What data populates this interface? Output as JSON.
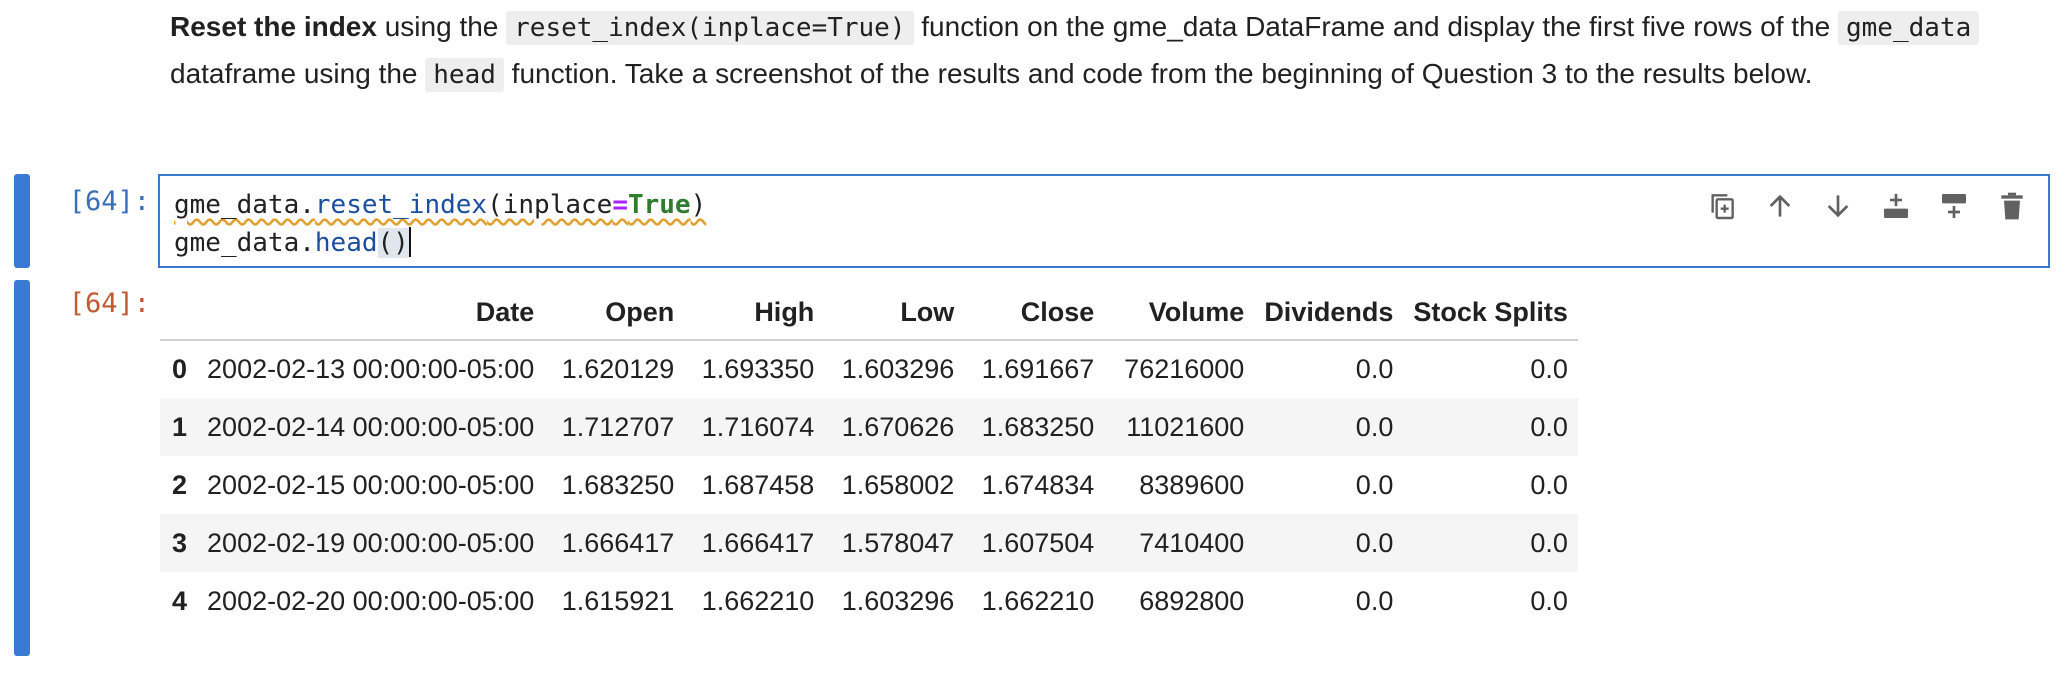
{
  "markdown": {
    "bold": "Reset the index",
    "t1": " using the ",
    "code1": "reset_index(inplace=True)",
    "t2": " function on the gme_data DataFrame and display the first five rows of the ",
    "code2": "gme_data",
    "t3": " dataframe using the ",
    "code3": "head",
    "t4": " function. Take a screenshot of the results and code from the beginning of Question 3 to the results below."
  },
  "cell": {
    "input_prompt": "[64]:",
    "output_prompt": "[64]:",
    "code_line1": {
      "obj": "gme_data.",
      "fn": "reset_index",
      "open": "(inplace",
      "eq": "=",
      "kw": "True",
      "close": ")"
    },
    "code_line2": {
      "obj": "gme_data.",
      "fn": "head",
      "parens": "()"
    },
    "toolbar": [
      "duplicate-icon",
      "move-up-icon",
      "move-down-icon",
      "insert-above-icon",
      "insert-below-icon",
      "delete-icon"
    ]
  },
  "table": {
    "columns": [
      "Date",
      "Open",
      "High",
      "Low",
      "Close",
      "Volume",
      "Dividends",
      "Stock Splits"
    ],
    "rows": [
      {
        "index": "0",
        "cells": [
          "2002-02-13 00:00:00-05:00",
          "1.620129",
          "1.693350",
          "1.603296",
          "1.691667",
          "76216000",
          "0.0",
          "0.0"
        ]
      },
      {
        "index": "1",
        "cells": [
          "2002-02-14 00:00:00-05:00",
          "1.712707",
          "1.716074",
          "1.670626",
          "1.683250",
          "11021600",
          "0.0",
          "0.0"
        ]
      },
      {
        "index": "2",
        "cells": [
          "2002-02-15 00:00:00-05:00",
          "1.683250",
          "1.687458",
          "1.658002",
          "1.674834",
          "8389600",
          "0.0",
          "0.0"
        ]
      },
      {
        "index": "3",
        "cells": [
          "2002-02-19 00:00:00-05:00",
          "1.666417",
          "1.666417",
          "1.578047",
          "1.607504",
          "7410400",
          "0.0",
          "0.0"
        ]
      },
      {
        "index": "4",
        "cells": [
          "2002-02-20 00:00:00-05:00",
          "1.615921",
          "1.662210",
          "1.603296",
          "1.662210",
          "6892800",
          "0.0",
          "0.0"
        ]
      }
    ]
  },
  "colors": {
    "accent": "#3a79d4",
    "input_prompt": "#3a6fb8",
    "output_prompt": "#c05a32"
  }
}
